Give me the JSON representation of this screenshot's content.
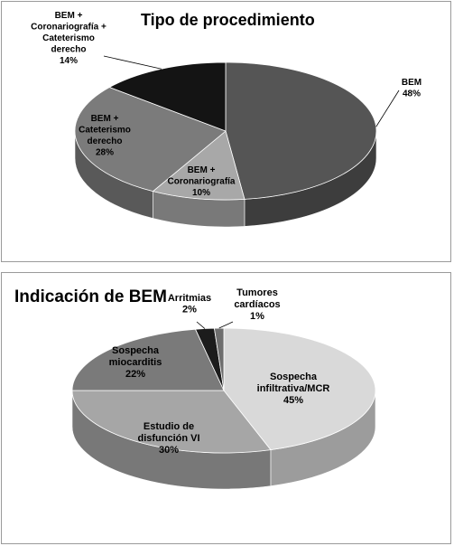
{
  "chart_data": [
    {
      "type": "pie",
      "title": "Tipo de procedimiento",
      "slices": [
        {
          "label": [
            "BEM"
          ],
          "value": 48,
          "pct_text": "48%",
          "color": "#555555",
          "text_color": "#000000"
        },
        {
          "label": [
            "BEM +",
            "Coronariografía"
          ],
          "value": 10,
          "pct_text": "10%",
          "color": "#a8a8a8",
          "text_color": "#000000"
        },
        {
          "label": [
            "BEM +",
            "Cateterismo",
            "derecho"
          ],
          "value": 28,
          "pct_text": "28%",
          "color": "#7b7b7b",
          "text_color": "#000000"
        },
        {
          "label": [
            "BEM +",
            "Coronariografía +",
            "Cateterismo",
            "derecho"
          ],
          "value": 14,
          "pct_text": "14%",
          "color": "#141414",
          "text_color": "#000000"
        }
      ]
    },
    {
      "type": "pie",
      "title": "Indicación de BEM",
      "slices": [
        {
          "label": [
            "Sospecha",
            "infiltrativa/MCR"
          ],
          "value": 45,
          "pct_text": "45%",
          "color": "#d9d9d9",
          "text_color": "#000000"
        },
        {
          "label": [
            "Estudio de",
            "disfunción VI"
          ],
          "value": 30,
          "pct_text": "30%",
          "color": "#a6a6a6",
          "text_color": "#000000"
        },
        {
          "label": [
            "Sospecha",
            "miocarditis"
          ],
          "value": 22,
          "pct_text": "22%",
          "color": "#7a7a7a",
          "text_color": "#000000"
        },
        {
          "label": [
            "Arritmias"
          ],
          "value": 2,
          "pct_text": "2%",
          "color": "#1c1c1c",
          "text_color": "#000000"
        },
        {
          "label": [
            "Tumores",
            "cardíacos"
          ],
          "value": 1,
          "pct_text": "1%",
          "color": "#6e6e6e",
          "text_color": "#000000"
        }
      ]
    }
  ]
}
